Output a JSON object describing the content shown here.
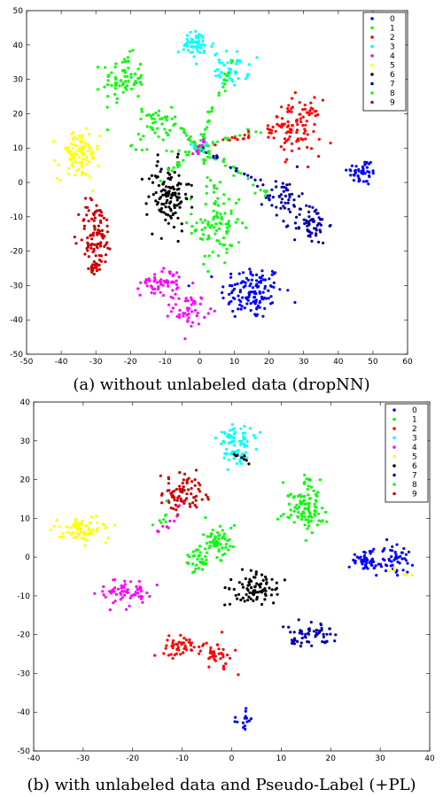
{
  "chart_data": [
    {
      "type": "scatter",
      "caption": "(a) without unlabeled data (dropNN)",
      "xlim": [
        -50,
        60
      ],
      "ylim": [
        -50,
        50
      ],
      "xticks": [
        -50,
        -40,
        -30,
        -20,
        -10,
        0,
        10,
        20,
        30,
        40,
        50,
        60
      ],
      "yticks": [
        -50,
        -40,
        -30,
        -20,
        -10,
        0,
        10,
        20,
        30,
        40,
        50
      ],
      "grid": false,
      "legend_position": "top-right",
      "legend": [
        "0",
        "1",
        "2",
        "3",
        "4",
        "5",
        "6",
        "7",
        "8",
        "9"
      ],
      "series_colors": [
        "#0000ff",
        "#00ff00",
        "#ff0000",
        "#00ffff",
        "#ff00ff",
        "#ffff00",
        "#000000",
        "#0000aa",
        "#22ee22",
        "#cc0000"
      ],
      "clusters": [
        {
          "label": "0",
          "cx": 15,
          "cy": -32,
          "sx": 4.5,
          "sy": 4,
          "n": 130
        },
        {
          "label": "0",
          "cx": 47,
          "cy": 3,
          "sx": 2.2,
          "sy": 2,
          "n": 45
        },
        {
          "label": "1",
          "cx": -22,
          "cy": 30,
          "sx": 3,
          "sy": 3.5,
          "n": 70
        },
        {
          "label": "1",
          "cx": 5,
          "cy": -12,
          "sx": 3.5,
          "sy": 6,
          "n": 90
        },
        {
          "label": "1",
          "cx": -13,
          "cy": 17,
          "sx": 2.5,
          "sy": 2.5,
          "n": 35
        },
        {
          "label": "2",
          "cx": 28,
          "cy": 16,
          "sx": 3.5,
          "sy": 4,
          "n": 95
        },
        {
          "label": "3",
          "cx": -1,
          "cy": 40,
          "sx": 2.5,
          "sy": 2,
          "n": 55
        },
        {
          "label": "3",
          "cx": 9,
          "cy": 33,
          "sx": 2.5,
          "sy": 2.5,
          "n": 45
        },
        {
          "label": "4",
          "cx": -11,
          "cy": -29,
          "sx": 3,
          "sy": 2,
          "n": 55
        },
        {
          "label": "4",
          "cx": -3,
          "cy": -37,
          "sx": 2.5,
          "sy": 2.2,
          "n": 50
        },
        {
          "label": "5",
          "cx": -35,
          "cy": 8,
          "sx": 3,
          "sy": 3.5,
          "n": 100
        },
        {
          "label": "6",
          "cx": -9,
          "cy": -4,
          "sx": 3,
          "sy": 5,
          "n": 120
        },
        {
          "label": "7",
          "cx": 24,
          "cy": -4,
          "sx": 2.5,
          "sy": 2.5,
          "n": 45
        },
        {
          "label": "7",
          "cx": 32,
          "cy": -12,
          "sx": 2.5,
          "sy": 3,
          "n": 65
        },
        {
          "label": "9",
          "cx": -30,
          "cy": -15,
          "sx": 2.5,
          "sy": 5,
          "n": 95
        },
        {
          "label": "9",
          "cx": -30,
          "cy": -25,
          "sx": 0.8,
          "sy": 0.8,
          "n": 18
        }
      ],
      "trails": [
        {
          "label": "8",
          "points": [
            [
              0,
              10
            ],
            [
              -6,
              16
            ],
            [
              -13,
              21
            ]
          ],
          "n": 25
        },
        {
          "label": "1",
          "points": [
            [
              0,
              10
            ],
            [
              4,
              22
            ],
            [
              10,
              36
            ]
          ],
          "n": 30
        },
        {
          "label": "8",
          "points": [
            [
              0,
              10
            ],
            [
              8,
              13
            ],
            [
              18,
              15
            ]
          ],
          "n": 22
        },
        {
          "label": "2",
          "points": [
            [
              0,
              10
            ],
            [
              14,
              14
            ],
            [
              28,
              18
            ]
          ],
          "n": 25
        },
        {
          "label": "8",
          "points": [
            [
              0,
              10
            ],
            [
              10,
              4
            ],
            [
              20,
              -4
            ]
          ],
          "n": 25
        },
        {
          "label": "1",
          "points": [
            [
              0,
              10
            ],
            [
              -6,
              6
            ],
            [
              -12,
              0
            ]
          ],
          "n": 18
        },
        {
          "label": "7",
          "points": [
            [
              0,
              10
            ],
            [
              12,
              3
            ],
            [
              24,
              -4
            ]
          ],
          "n": 18
        },
        {
          "label": "8",
          "points": [
            [
              0,
              10
            ],
            [
              -10,
              9
            ],
            [
              -20,
              10
            ]
          ],
          "n": 15
        },
        {
          "label": "8",
          "points": [
            [
              0,
              10
            ],
            [
              3,
              2
            ],
            [
              5,
              -6
            ]
          ],
          "n": 15
        },
        {
          "label": "3",
          "points": [
            [
              -2,
              11
            ],
            [
              0,
              9
            ],
            [
              2,
              11
            ]
          ],
          "n": 10
        },
        {
          "label": "4",
          "points": [
            [
              -1,
              8
            ],
            [
              0,
              10
            ],
            [
              1,
              12
            ]
          ],
          "n": 10
        }
      ]
    },
    {
      "type": "scatter",
      "caption": "(b) with unlabeled data and Pseudo-Label (+PL)",
      "xlim": [
        -40,
        40
      ],
      "ylim": [
        -50,
        40
      ],
      "xticks": [
        -40,
        -30,
        -20,
        -10,
        0,
        10,
        20,
        30,
        40
      ],
      "yticks": [
        -50,
        -40,
        -30,
        -20,
        -10,
        0,
        10,
        20,
        30,
        40
      ],
      "grid": false,
      "legend_position": "top-right",
      "legend": [
        "0",
        "1",
        "2",
        "3",
        "4",
        "5",
        "6",
        "7",
        "8",
        "9"
      ],
      "series_colors": [
        "#0000ff",
        "#00ff00",
        "#ff0000",
        "#00ffff",
        "#ff00ff",
        "#ffff00",
        "#000000",
        "#0000aa",
        "#22ee22",
        "#cc0000"
      ],
      "clusters": [
        {
          "label": "0",
          "cx": 27,
          "cy": -1,
          "sx": 1.6,
          "sy": 1.3,
          "n": 45
        },
        {
          "label": "0",
          "cx": 32,
          "cy": -1,
          "sx": 2.5,
          "sy": 1.8,
          "n": 55
        },
        {
          "label": "0",
          "cx": 3,
          "cy": -42,
          "sx": 1.0,
          "sy": 1.5,
          "n": 15
        },
        {
          "label": "1",
          "cx": -3,
          "cy": 4,
          "sx": 1.8,
          "sy": 2,
          "n": 55
        },
        {
          "label": "1",
          "cx": -7,
          "cy": -1,
          "sx": 1.5,
          "sy": 1.5,
          "n": 30
        },
        {
          "label": "1",
          "cx": 15,
          "cy": 13,
          "sx": 2.2,
          "sy": 3.5,
          "n": 85
        },
        {
          "label": "2",
          "cx": -11,
          "cy": -23,
          "sx": 2,
          "sy": 1.5,
          "n": 45
        },
        {
          "label": "2",
          "cx": -3,
          "cy": -25,
          "sx": 1.6,
          "sy": 1.6,
          "n": 40
        },
        {
          "label": "3",
          "cx": 1,
          "cy": 31,
          "sx": 1.8,
          "sy": 1.8,
          "n": 50
        },
        {
          "label": "3",
          "cx": 1,
          "cy": 26,
          "sx": 1.5,
          "sy": 1.2,
          "n": 30
        },
        {
          "label": "4",
          "cx": -21,
          "cy": -9,
          "sx": 2.5,
          "sy": 1.6,
          "n": 65
        },
        {
          "label": "5",
          "cx": -30,
          "cy": 7,
          "sx": 2.8,
          "sy": 1.6,
          "n": 75
        },
        {
          "label": "6",
          "cx": 5,
          "cy": -8,
          "sx": 2.5,
          "sy": 2,
          "n": 80
        },
        {
          "label": "7",
          "cx": 16,
          "cy": -20,
          "sx": 2.8,
          "sy": 1.6,
          "n": 55
        },
        {
          "label": "8",
          "cx": 14,
          "cy": 13,
          "sx": 1.8,
          "sy": 2.5,
          "n": 20
        },
        {
          "label": "9",
          "cx": -10,
          "cy": 16,
          "sx": 2.2,
          "sy": 2.5,
          "n": 80
        }
      ],
      "trails": [
        {
          "label": "4",
          "points": [
            [
              -15,
              6
            ],
            [
              -12,
              10
            ],
            [
              -10,
              14
            ]
          ],
          "n": 10
        },
        {
          "label": "8",
          "points": [
            [
              -16,
              6
            ],
            [
              -14,
              10
            ],
            [
              -13,
              14
            ]
          ],
          "n": 8
        },
        {
          "label": "6",
          "points": [
            [
              1,
              27
            ],
            [
              3,
              25
            ],
            [
              5,
              23
            ]
          ],
          "n": 8
        },
        {
          "label": "7",
          "points": [
            [
              12,
              -21
            ],
            [
              13,
              -22
            ],
            [
              14,
              -23
            ]
          ],
          "n": 6
        },
        {
          "label": "5",
          "points": [
            [
              32,
              -3
            ],
            [
              34,
              -4
            ],
            [
              36,
              -5
            ]
          ],
          "n": 6
        }
      ]
    }
  ]
}
